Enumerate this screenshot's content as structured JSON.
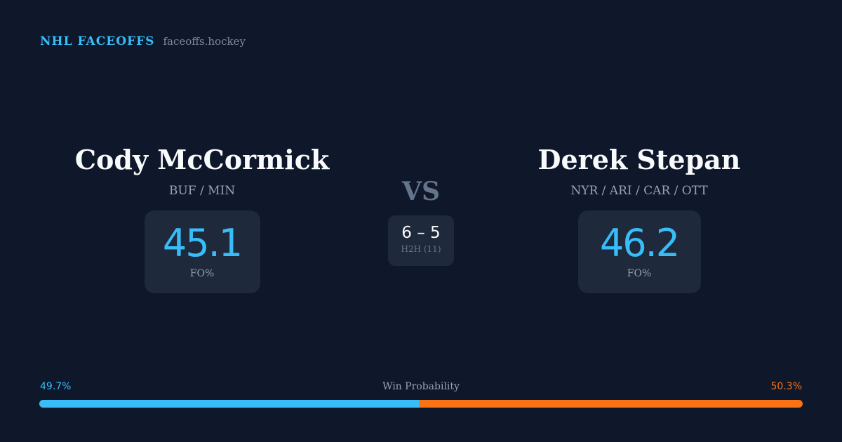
{
  "brand": {
    "title": "NHL FACEOFFS",
    "url": "faceoffs.hockey"
  },
  "player1": {
    "name": "Cody McCormick",
    "teams": "BUF / MIN",
    "fo_pct": "45.1",
    "fo_label": "FO%"
  },
  "player2": {
    "name": "Derek Stepan",
    "teams": "NYR / ARI / CAR / OTT",
    "fo_pct": "46.2",
    "fo_label": "FO%"
  },
  "vs": "VS",
  "h2h": {
    "score": "6 – 5",
    "label": "H2H (11)"
  },
  "win_probability": {
    "label": "Win Probability",
    "left": "49.7%",
    "right": "50.3%",
    "left_value": 49.7,
    "colors": {
      "left": "#38bdf8",
      "right": "#f97316"
    }
  }
}
